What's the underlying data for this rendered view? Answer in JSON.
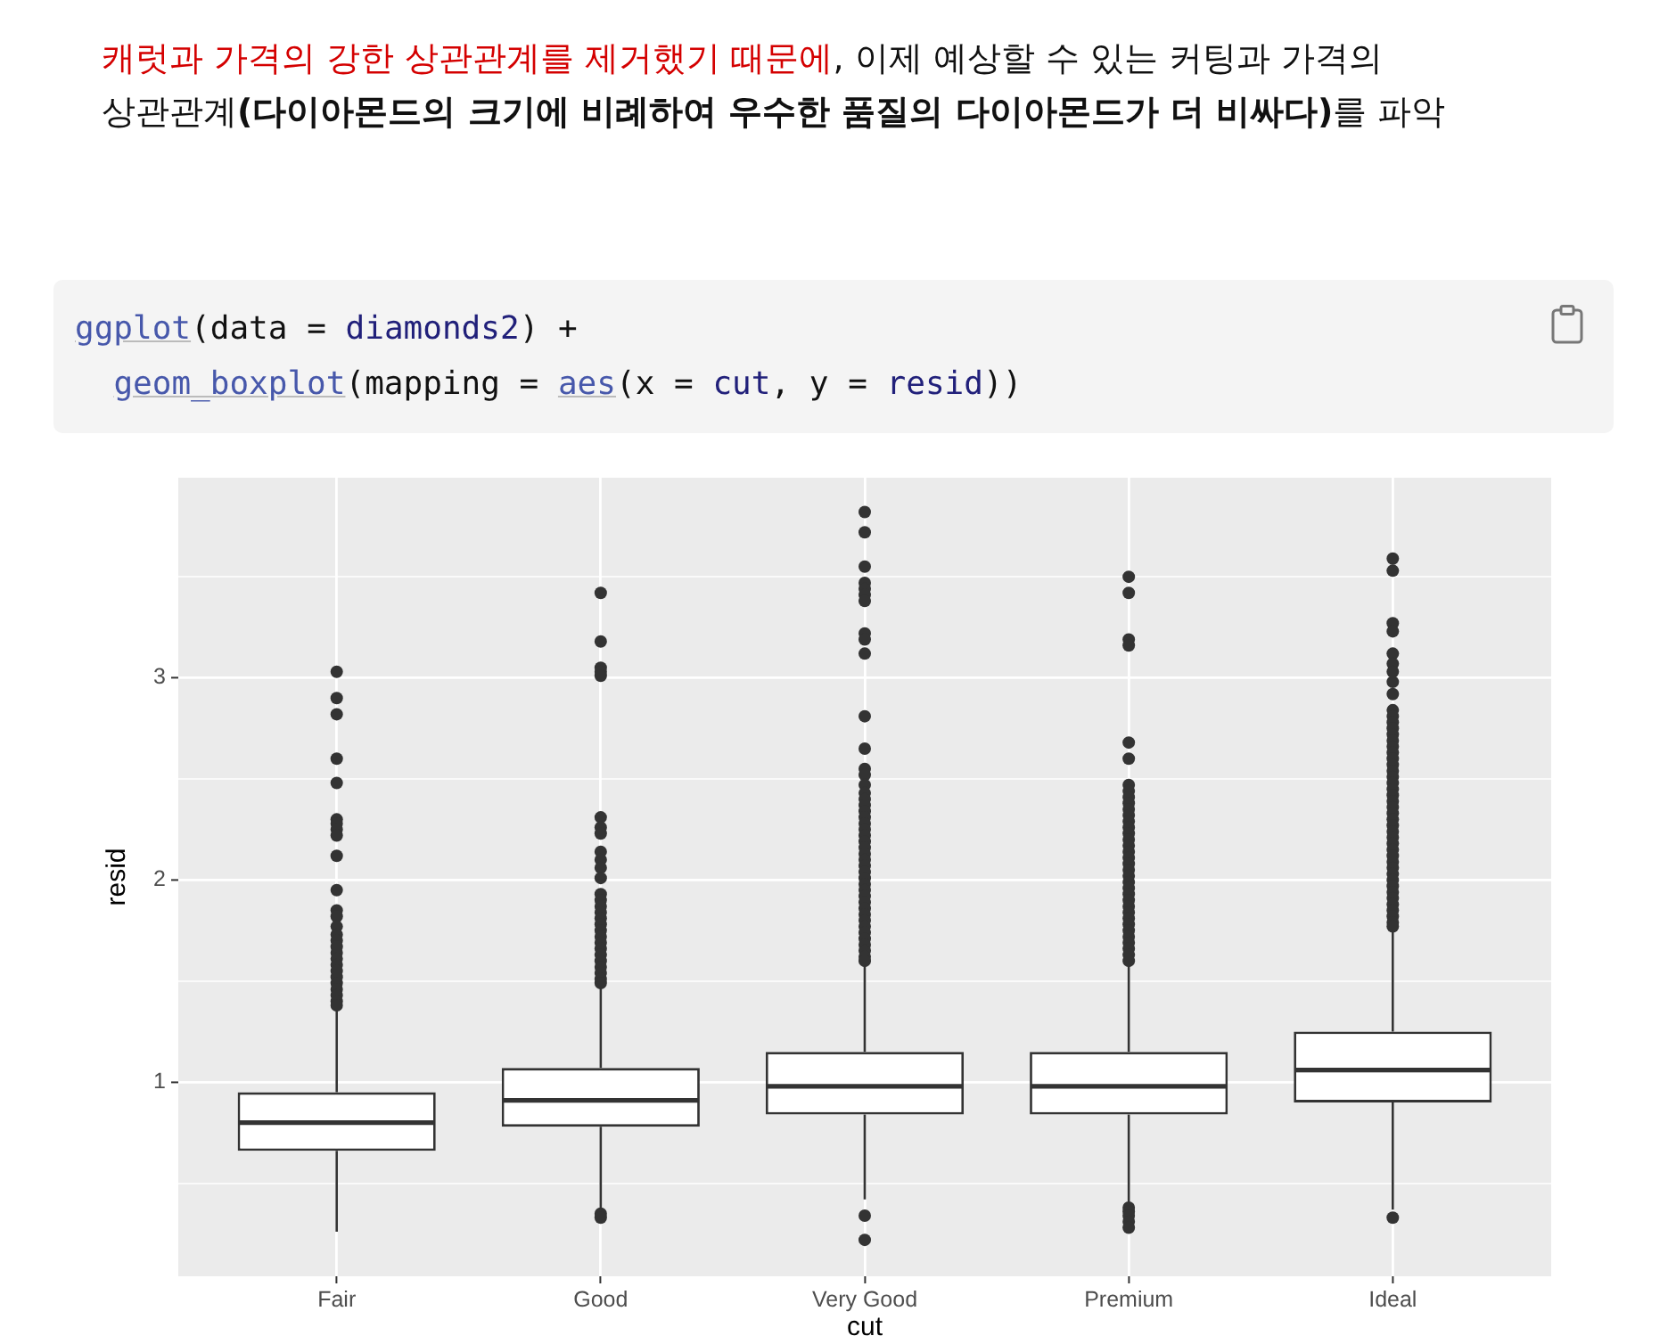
{
  "chart_data": {
    "type": "box",
    "annotations": [
      "캐럿과 가격의 강한 상관관계를 제거했기 때문에",
      ", 이제 예상할 수 있는 커팅과 가격의",
      "상관관계",
      "(다이아몬드의 크기에 비례하여 우수한 품질의 다이아몬드가 더 비싸다)",
      "를 파악",
      "ggplot(data = diamonds2) +",
      "geom_boxplot(mapping = aes(x = cut, y = resid))"
    ],
    "categories": [
      "Fair",
      "Good",
      "Very Good",
      "Premium",
      "Ideal"
    ],
    "xlabel": "cut",
    "ylabel": "resid",
    "ylim": [
      0.04,
      3.99
    ],
    "yticks": [
      {
        "value": 0.5,
        "label": null
      },
      1,
      {
        "value": 1.5,
        "label": null
      },
      2,
      {
        "value": 2.5,
        "label": null
      },
      3,
      {
        "value": 3.5,
        "label": null
      }
    ],
    "grid": true,
    "boxes": [
      {
        "low": 0.26,
        "q1": 0.66,
        "median": 0.8,
        "q3": 0.95,
        "high": 1.36,
        "outliers": [
          3.03,
          2.9,
          2.82,
          2.6,
          2.48,
          2.3,
          2.28,
          2.25,
          2.22,
          2.12,
          1.95,
          1.85,
          1.82,
          1.77,
          1.73,
          1.7,
          1.67,
          1.64,
          1.61,
          1.58,
          1.55,
          1.52,
          1.49,
          1.46,
          1.43,
          1.4,
          1.38
        ]
      },
      {
        "low": 0.37,
        "q1": 0.78,
        "median": 0.91,
        "q3": 1.07,
        "high": 1.48,
        "outliers": [
          3.42,
          3.18,
          3.05,
          3.03,
          3.01,
          2.31,
          2.26,
          2.23,
          2.14,
          2.1,
          2.06,
          2.01,
          1.93,
          1.9,
          1.87,
          1.84,
          1.81,
          1.78,
          1.75,
          1.72,
          1.69,
          1.66,
          1.63,
          1.6,
          1.57,
          1.54,
          1.51,
          1.49,
          0.35,
          0.33
        ]
      },
      {
        "low": 0.42,
        "q1": 0.84,
        "median": 0.98,
        "q3": 1.15,
        "high": 1.58,
        "outliers": [
          3.82,
          3.72,
          3.55,
          3.47,
          3.44,
          3.41,
          3.38,
          3.22,
          3.19,
          3.12,
          2.81,
          2.65,
          2.55,
          2.52,
          2.47,
          2.43,
          2.4,
          2.37,
          2.34,
          2.31,
          2.28,
          2.25,
          2.22,
          2.19,
          2.16,
          2.13,
          2.1,
          2.07,
          2.04,
          2.01,
          1.98,
          1.95,
          1.92,
          1.89,
          1.86,
          1.83,
          1.8,
          1.77,
          1.74,
          1.71,
          1.68,
          1.65,
          1.62,
          1.6,
          0.34,
          0.22
        ]
      },
      {
        "low": 0.4,
        "q1": 0.84,
        "median": 0.98,
        "q3": 1.15,
        "high": 1.58,
        "outliers": [
          3.5,
          3.42,
          3.19,
          3.16,
          2.68,
          2.6,
          2.47,
          2.44,
          2.41,
          2.38,
          2.35,
          2.32,
          2.29,
          2.26,
          2.23,
          2.2,
          2.17,
          2.14,
          2.11,
          2.08,
          2.05,
          2.02,
          1.99,
          1.96,
          1.93,
          1.9,
          1.87,
          1.84,
          1.81,
          1.78,
          1.75,
          1.72,
          1.69,
          1.66,
          1.63,
          1.6,
          0.38,
          0.36,
          0.34,
          0.31,
          0.28
        ]
      },
      {
        "low": 0.37,
        "q1": 0.9,
        "median": 1.06,
        "q3": 1.25,
        "high": 1.76,
        "outliers": [
          3.59,
          3.53,
          3.27,
          3.23,
          3.12,
          3.07,
          3.03,
          2.98,
          2.92,
          2.84,
          2.81,
          2.78,
          2.75,
          2.72,
          2.69,
          2.66,
          2.63,
          2.6,
          2.57,
          2.54,
          2.51,
          2.48,
          2.45,
          2.42,
          2.39,
          2.36,
          2.33,
          2.3,
          2.27,
          2.24,
          2.21,
          2.18,
          2.15,
          2.12,
          2.09,
          2.06,
          2.03,
          2.0,
          1.97,
          1.94,
          1.91,
          1.88,
          1.85,
          1.82,
          1.79,
          1.77,
          0.33
        ]
      }
    ]
  }
}
